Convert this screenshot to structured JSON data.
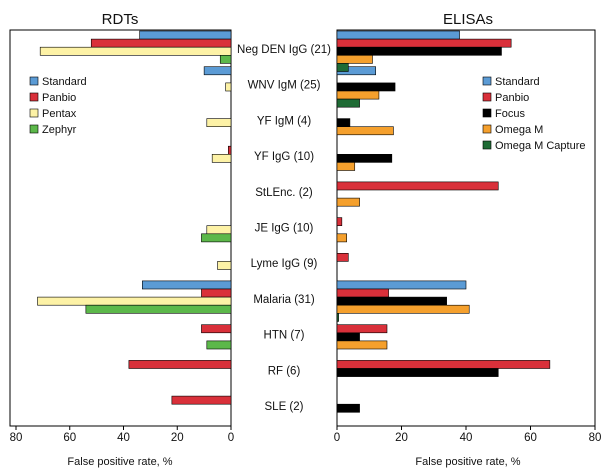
{
  "colors": {
    "Standard": "#5b9bd5",
    "Panbio": "#d9303a",
    "Pentax": "#fdf2a6",
    "Zephyr": "#5cb84a",
    "Focus": "#000000",
    "Omega M": "#f5a02d",
    "Omega M Capture": "#1f6b35"
  },
  "categories": [
    "Neg DEN IgG (21)",
    "WNV IgM (25)",
    "YF IgM (4)",
    "YF IgG (10)",
    "StLEnc. (2)",
    "JE IgG (10)",
    "Lyme IgG (9)",
    "Malaria (31)",
    "HTN (7)",
    "RF (6)",
    "SLE (2)"
  ],
  "chart_data": [
    {
      "type": "bar",
      "orientation": "horizontal",
      "title": "RDTs",
      "xlabel": "False positive rate, %",
      "xlim": [
        0,
        80
      ],
      "x_reversed": true,
      "xticks": [
        "80",
        "60",
        "40",
        "20",
        "0"
      ],
      "legend_placement": "top-left",
      "categories": [
        "Neg DEN IgG (21)",
        "WNV IgM (25)",
        "YF IgM (4)",
        "YF IgG (10)",
        "StLEnc. (2)",
        "JE IgG (10)",
        "Lyme IgG (9)",
        "Malaria (31)",
        "HTN (7)",
        "RF (6)",
        "SLE (2)"
      ],
      "series": [
        {
          "name": "Standard",
          "values": [
            34,
            10,
            0,
            0,
            0,
            0,
            0,
            33,
            0,
            0,
            0
          ]
        },
        {
          "name": "Panbio",
          "values": [
            52,
            0,
            0,
            1,
            0,
            0,
            0,
            11,
            11,
            38,
            22
          ]
        },
        {
          "name": "Pentax",
          "values": [
            71,
            2,
            9,
            7,
            0,
            9,
            5,
            72,
            0,
            0,
            0
          ]
        },
        {
          "name": "Zephyr",
          "values": [
            4,
            0,
            0,
            0,
            0,
            11,
            0,
            54,
            9,
            0,
            0
          ]
        }
      ]
    },
    {
      "type": "bar",
      "orientation": "horizontal",
      "title": "ELISAs",
      "xlabel": "False positive rate, %",
      "xlim": [
        0,
        80
      ],
      "x_reversed": false,
      "xticks": [
        "0",
        "20",
        "40",
        "60",
        "80"
      ],
      "legend_placement": "top-right",
      "categories": [
        "Neg DEN IgG (21)",
        "WNV IgM (25)",
        "YF IgM (4)",
        "YF IgG (10)",
        "StLEnc. (2)",
        "JE IgG (10)",
        "Lyme IgG (9)",
        "Malaria (31)",
        "HTN (7)",
        "RF (6)",
        "SLE (2)"
      ],
      "series": [
        {
          "name": "Standard",
          "values": [
            38,
            12,
            0,
            0,
            0,
            0,
            0,
            40,
            0,
            0,
            0
          ]
        },
        {
          "name": "Panbio",
          "values": [
            54,
            0,
            0,
            0,
            50,
            1.5,
            3.5,
            16,
            15.5,
            66,
            0
          ]
        },
        {
          "name": "Focus",
          "values": [
            51,
            18,
            4,
            17,
            0,
            0,
            0,
            34,
            7,
            50,
            7
          ]
        },
        {
          "name": "Omega M",
          "values": [
            11,
            13,
            17.5,
            5.5,
            7,
            3,
            0,
            41,
            15.5,
            0,
            0
          ]
        },
        {
          "name": "Omega M Capture",
          "values": [
            3.5,
            7,
            0,
            0,
            0,
            0,
            0,
            0.5,
            0,
            0,
            0
          ]
        }
      ]
    }
  ]
}
